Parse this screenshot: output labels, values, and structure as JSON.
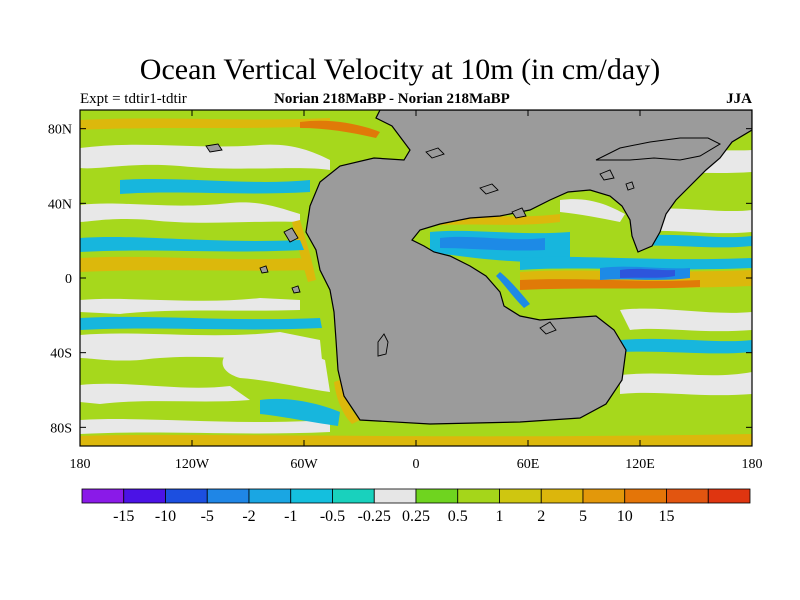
{
  "title": "Ocean Vertical Velocity at 10m (in cm/day)",
  "subtitle_left": "Expt = tdtir1-tdtir",
  "subtitle_center": "Norian   218MaBP - Norian   218MaBP",
  "subtitle_right": "JJA",
  "map": {
    "lon_range": [
      -180,
      180
    ],
    "lat_range": [
      -90,
      90
    ],
    "x_ticks": [
      "180",
      "120W",
      "60W",
      "0",
      "60E",
      "120E",
      "180"
    ],
    "y_ticks": [
      "80N",
      "40N",
      "0",
      "40S",
      "80S"
    ],
    "land_color": "#9b9b9b"
  },
  "colorbar": {
    "colors": [
      "#8a1ae8",
      "#4b12e6",
      "#1c4fe0",
      "#1f86e6",
      "#1aa6e3",
      "#14bfde",
      "#19d1bd",
      "#e6e6e6",
      "#6fd41f",
      "#a5d61a",
      "#cfc610",
      "#dcb60c",
      "#e3980a",
      "#e47508",
      "#e25510",
      "#df3510"
    ],
    "labels": [
      "-15",
      "-10",
      "-5",
      "-2",
      "-1",
      "-0.5",
      "-0.25",
      "0.25",
      "0.5",
      "1",
      "2",
      "5",
      "10",
      "15"
    ]
  }
}
